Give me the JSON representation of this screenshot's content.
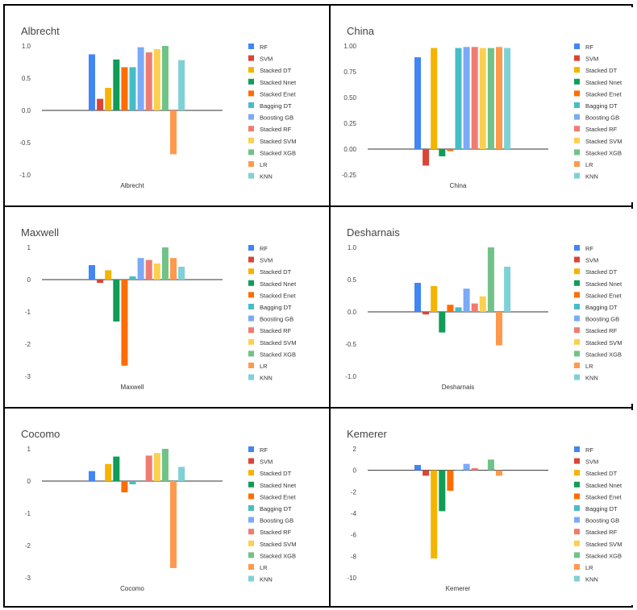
{
  "legend": [
    "RF",
    "SVM",
    "Stacked DT",
    "Stacked Nnet",
    "Stacked Enet",
    "Bagging DT",
    "Boosting GB",
    "Stacked RF",
    "Stacked SVM",
    "Stacked XGB",
    "LR",
    "KNN"
  ],
  "colors": [
    "#4285F4",
    "#DB4437",
    "#F4B400",
    "#0F9D58",
    "#FF6D01",
    "#46BDC6",
    "#7BAAF7",
    "#F07B72",
    "#FCD04F",
    "#71C287",
    "#FF994D",
    "#7ED1D7"
  ],
  "chart_data": [
    {
      "type": "bar",
      "title": "Albrecht",
      "xlabel": "Albrecht",
      "ylim": [
        -1,
        1
      ],
      "yticks": [
        1,
        0.5,
        0,
        -0.5,
        -1
      ],
      "ytick_labels": [
        "1.0",
        "0.5",
        "0.0",
        "-0.5",
        "-1.0"
      ],
      "series_names": [
        "RF",
        "SVM",
        "Stacked DT",
        "Stacked Nnet",
        "Stacked Enet",
        "Bagging DT",
        "Boosting GB",
        "Stacked RF",
        "Stacked SVM",
        "Stacked XGB",
        "LR",
        "KNN"
      ],
      "values": [
        0.87,
        0.18,
        0.35,
        0.79,
        0.67,
        0.67,
        0.98,
        0.9,
        0.95,
        1.0,
        -0.68,
        0.78
      ]
    },
    {
      "type": "bar",
      "title": "China",
      "xlabel": "China",
      "ylim": [
        -0.25,
        1
      ],
      "yticks": [
        1,
        0.75,
        0.5,
        0.25,
        0,
        -0.25
      ],
      "ytick_labels": [
        "1.00",
        "0.75",
        "0.50",
        "0.25",
        "0.00",
        "-0.25"
      ],
      "series_names": [
        "RF",
        "SVM",
        "Stacked DT",
        "Stacked Nnet",
        "Stacked Enet",
        "Bagging DT",
        "Boosting GB",
        "Stacked RF",
        "Stacked SVM",
        "Stacked XGB",
        "LR",
        "KNN"
      ],
      "values": [
        0.89,
        -0.16,
        0.98,
        -0.07,
        -0.02,
        0.98,
        0.99,
        0.99,
        0.98,
        0.98,
        0.99,
        0.98
      ]
    },
    {
      "type": "bar",
      "title": "Maxwell",
      "xlabel": "Maxwell",
      "ylim": [
        -3,
        1
      ],
      "yticks": [
        1,
        0,
        -1,
        -2,
        -3
      ],
      "ytick_labels": [
        "1",
        "0",
        "-1",
        "-2",
        "-3"
      ],
      "series_names": [
        "RF",
        "SVM",
        "Stacked DT",
        "Stacked Nnet",
        "Stacked Enet",
        "Bagging DT",
        "Boosting GB",
        "Stacked RF",
        "Stacked SVM",
        "Stacked XGB",
        "LR",
        "KNN"
      ],
      "values": [
        0.45,
        -0.1,
        0.29,
        -1.3,
        -2.67,
        0.1,
        0.67,
        0.61,
        0.5,
        1.0,
        0.67,
        0.4
      ]
    },
    {
      "type": "bar",
      "title": "Desharnais",
      "xlabel": "Desharnais",
      "ylim": [
        -1,
        1
      ],
      "yticks": [
        1,
        0.5,
        0,
        -0.5,
        -1
      ],
      "ytick_labels": [
        "1.0",
        "0.5",
        "0.0",
        "-0.5",
        "-1.0"
      ],
      "series_names": [
        "RF",
        "SVM",
        "Stacked DT",
        "Stacked Nnet",
        "Stacked Enet",
        "Bagging DT",
        "Boosting GB",
        "Stacked RF",
        "Stacked SVM",
        "Stacked XGB",
        "LR",
        "KNN"
      ],
      "values": [
        0.45,
        -0.04,
        0.4,
        -0.32,
        0.11,
        0.07,
        0.36,
        0.13,
        0.24,
        1.0,
        -0.52,
        0.7
      ]
    },
    {
      "type": "bar",
      "title": "Cocomo",
      "xlabel": "Cocomo",
      "ylim": [
        -3,
        1
      ],
      "yticks": [
        1,
        0,
        -1,
        -2,
        -3
      ],
      "ytick_labels": [
        "1",
        "0",
        "-1",
        "-2",
        "-3"
      ],
      "series_names": [
        "RF",
        "SVM",
        "Stacked DT",
        "Stacked Nnet",
        "Stacked Enet",
        "Bagging DT",
        "Boosting GB",
        "Stacked RF",
        "Stacked SVM",
        "Stacked XGB",
        "LR",
        "KNN"
      ],
      "values": [
        0.31,
        0.0,
        0.53,
        0.76,
        -0.35,
        -0.1,
        0.0,
        0.79,
        0.87,
        1.0,
        -2.7,
        0.44
      ]
    },
    {
      "type": "bar",
      "title": "Kemerer",
      "xlabel": "Kemerer",
      "ylim": [
        -10,
        2
      ],
      "yticks": [
        2,
        0,
        -2,
        -4,
        -6,
        -8,
        -10
      ],
      "ytick_labels": [
        "2",
        "0",
        "-2",
        "-4",
        "-6",
        "-8",
        "-10"
      ],
      "series_names": [
        "RF",
        "SVM",
        "Stacked DT",
        "Stacked Nnet",
        "Stacked Enet",
        "Bagging DT",
        "Boosting GB",
        "Stacked RF",
        "Stacked SVM",
        "Stacked XGB",
        "LR",
        "KNN"
      ],
      "values": [
        0.5,
        -0.5,
        -8.2,
        -3.8,
        -1.9,
        0.05,
        0.6,
        0.2,
        0.0,
        1.0,
        -0.5,
        0.0
      ]
    }
  ]
}
